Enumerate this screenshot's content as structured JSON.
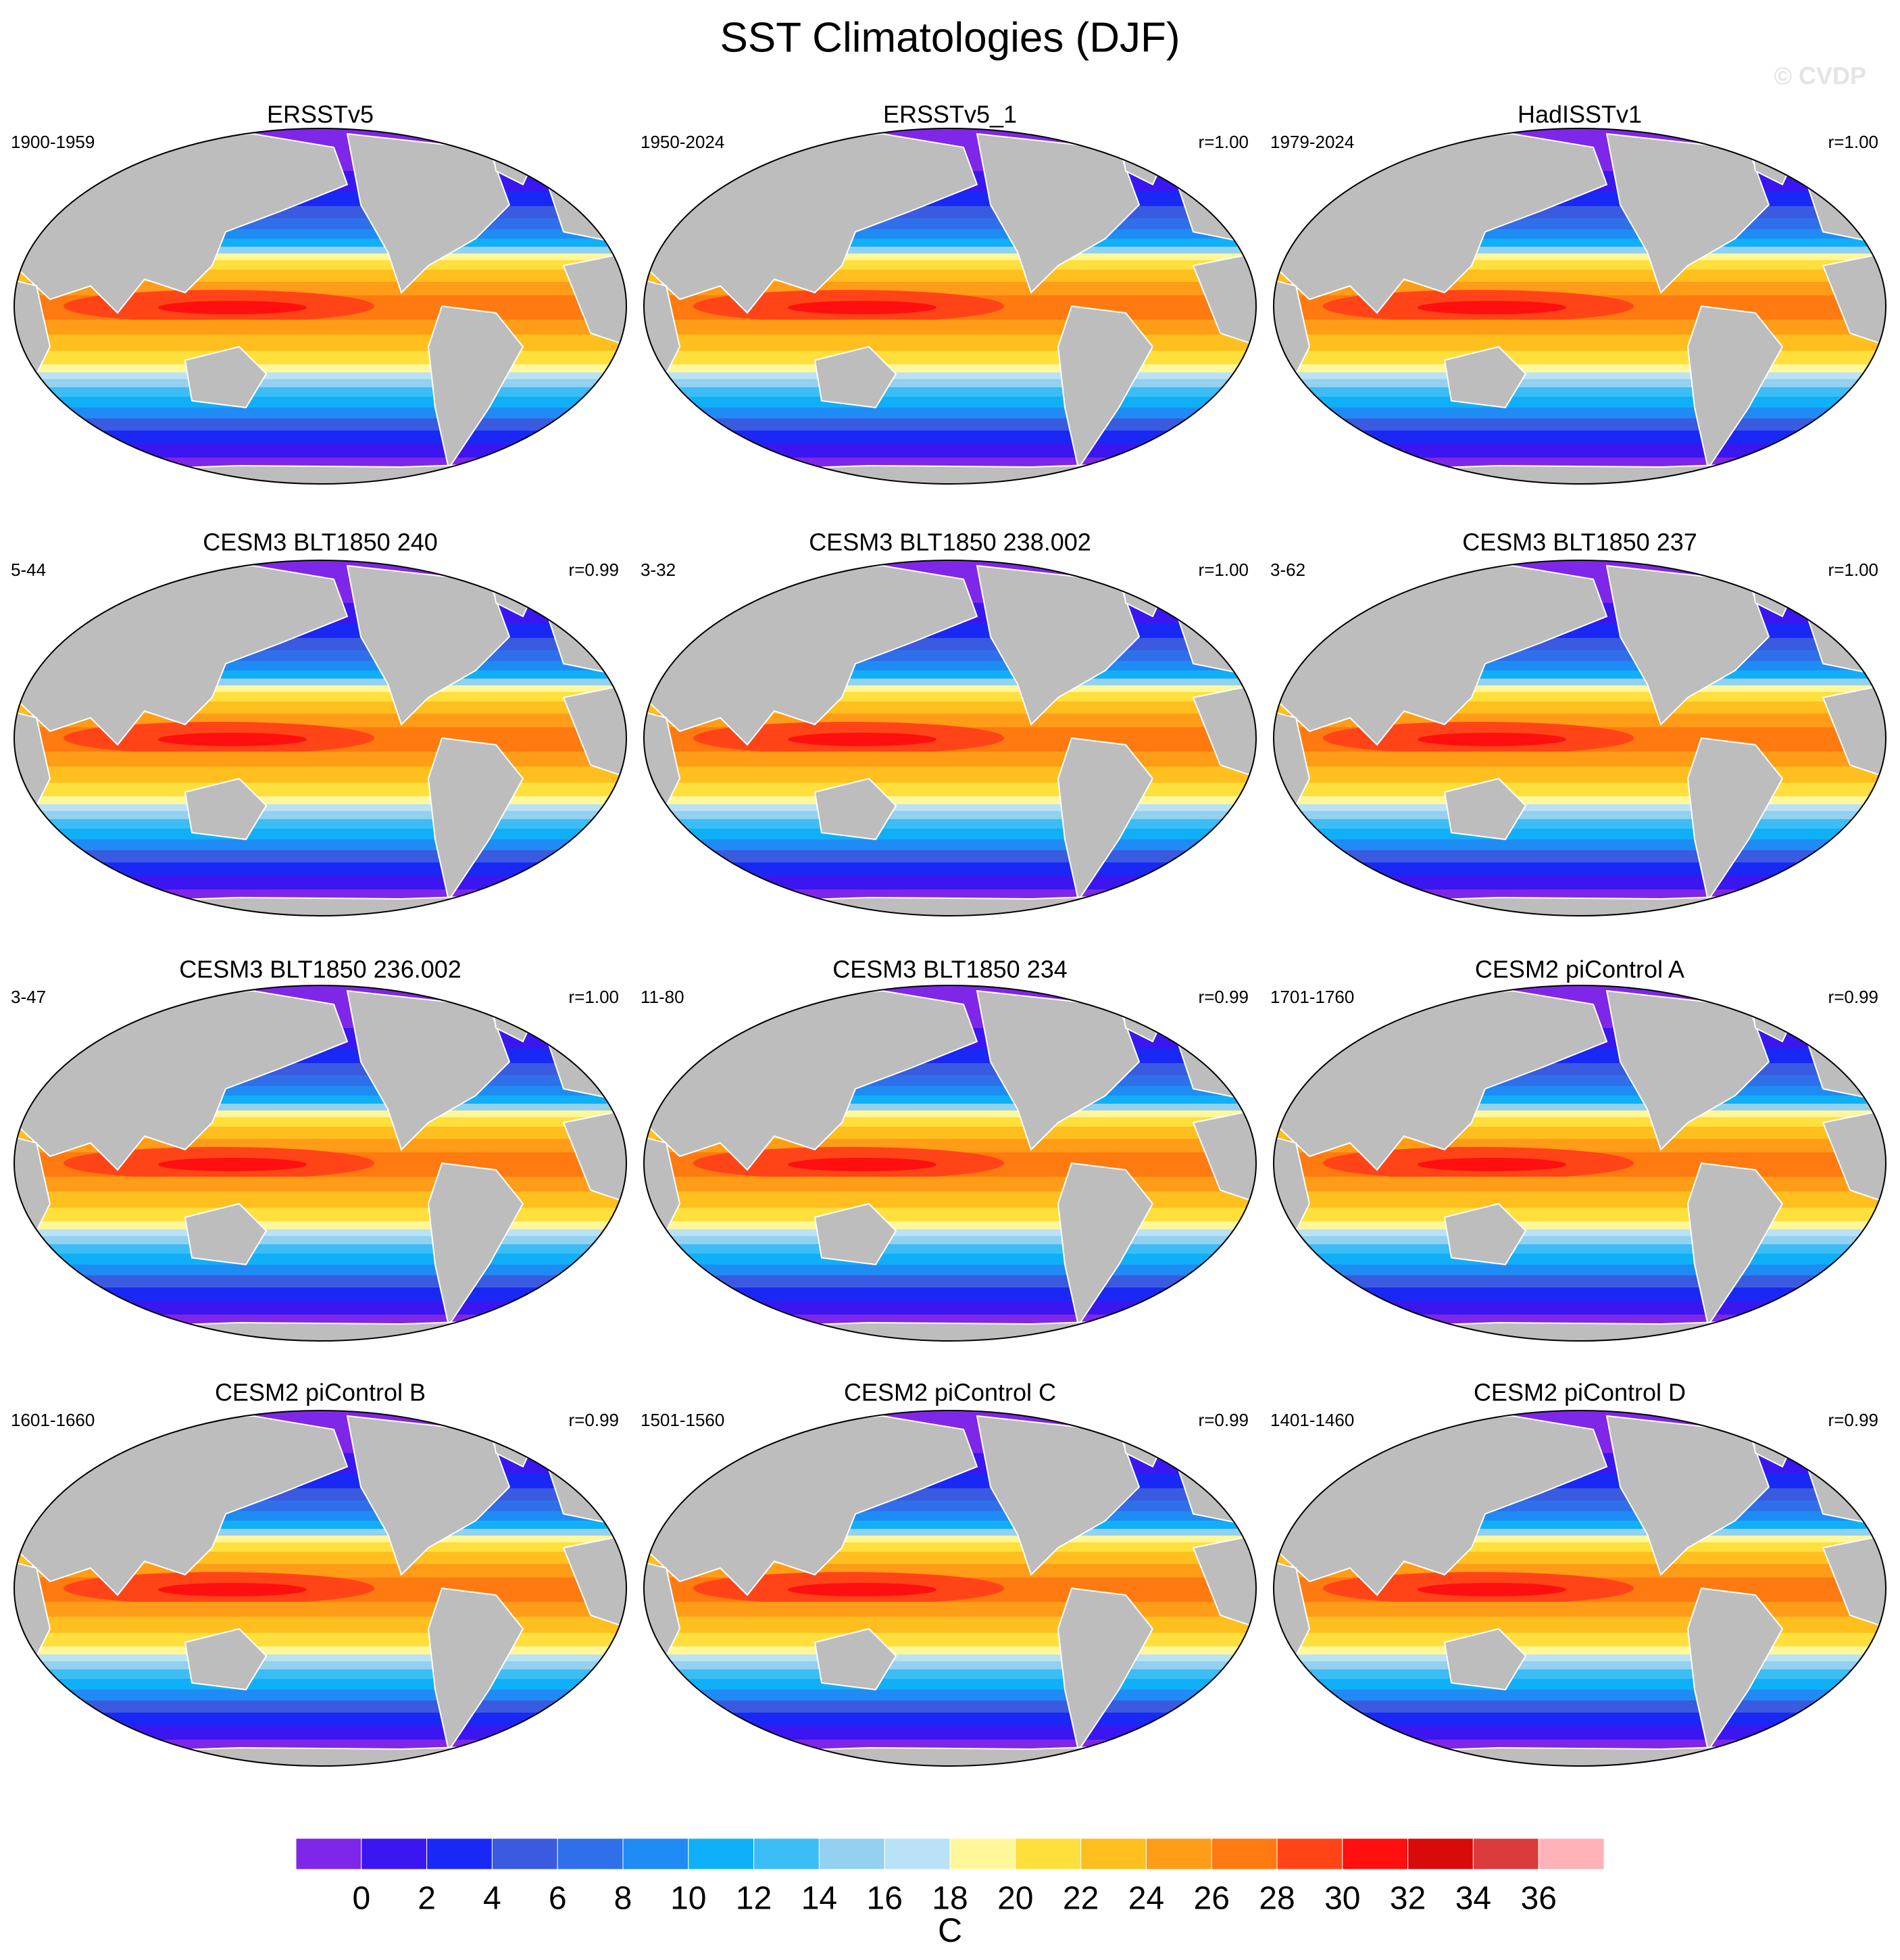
{
  "title": "SST Climatologies (DJF)",
  "watermark": "© CVDP",
  "panels": [
    {
      "title": "ERSSTv5",
      "period": "1900-1959"
    },
    {
      "title": "ERSSTv5_1",
      "period": "1950-2024",
      "corr": "r=1.00"
    },
    {
      "title": "HadISSTv1",
      "period": "1979-2024",
      "corr": "r=1.00"
    },
    {
      "title": "CESM3 BLT1850 240",
      "period": "5-44",
      "corr": "r=0.99"
    },
    {
      "title": "CESM3 BLT1850 238.002",
      "period": "3-32",
      "corr": "r=1.00"
    },
    {
      "title": "CESM3 BLT1850 237",
      "period": "3-62",
      "corr": "r=1.00"
    },
    {
      "title": "CESM3 BLT1850 236.002",
      "period": "3-47",
      "corr": "r=1.00"
    },
    {
      "title": "CESM3 BLT1850 234",
      "period": "11-80",
      "corr": "r=0.99"
    },
    {
      "title": "CESM2 piControl A",
      "period": "1701-1760",
      "corr": "r=0.99"
    },
    {
      "title": "CESM2 piControl B",
      "period": "1601-1660",
      "corr": "r=0.99"
    },
    {
      "title": "CESM2 piControl C",
      "period": "1501-1560",
      "corr": "r=0.99"
    },
    {
      "title": "CESM2 piControl D",
      "period": "1401-1460",
      "corr": "r=0.99"
    }
  ],
  "colorbar": {
    "colors": [
      "#7f27e8",
      "#3b16f0",
      "#1a28f5",
      "#3a5be0",
      "#2f70ea",
      "#1f8bf5",
      "#10b0f8",
      "#3cbdf5",
      "#94d0ef",
      "#b9e2f6",
      "#fff79a",
      "#ffdf3c",
      "#ffbf1f",
      "#ff9c18",
      "#ff7a10",
      "#ff4518",
      "#ff0f0f",
      "#d90a0a",
      "#dc3b3b",
      "#ffb3b8"
    ],
    "labels": [
      0,
      2,
      4,
      6,
      8,
      10,
      12,
      14,
      16,
      18,
      20,
      22,
      24,
      26,
      28,
      30,
      32,
      34,
      36
    ],
    "unit": "C"
  }
}
